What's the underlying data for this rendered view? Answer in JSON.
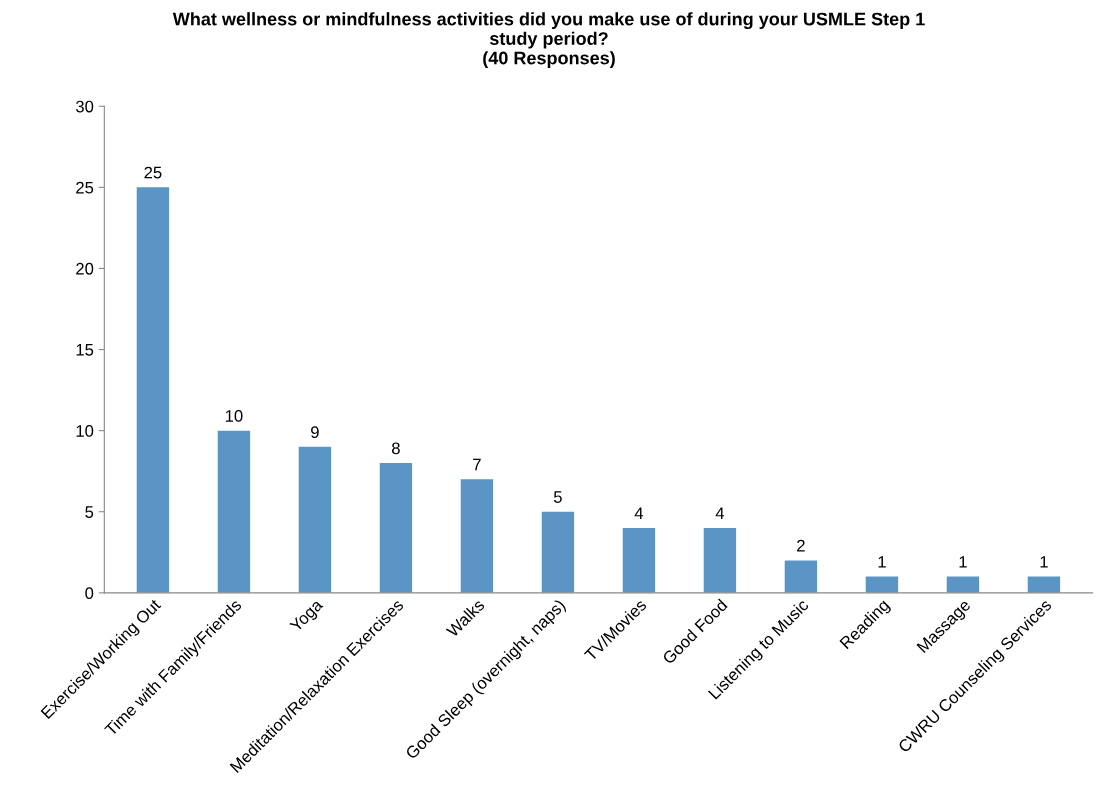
{
  "chart_data": {
    "type": "bar",
    "title": "What wellness or mindfulness activities did you make use of during your USMLE Step 1\nstudy period?\n(40 Responses)",
    "categories": [
      "Exercise/Working Out",
      "Time with Family/Friends",
      "Yoga",
      "Meditation/Relaxation Exercises",
      "Walks",
      "Good Sleep (overnight, naps)",
      "TV/Movies",
      "Good Food",
      "Listening to Music",
      "Reading",
      "Massage",
      "CWRU Counseling Services"
    ],
    "values": [
      25,
      10,
      9,
      8,
      7,
      5,
      4,
      4,
      2,
      1,
      1,
      1
    ],
    "color": "#5b95c6",
    "ylim": [
      0,
      30
    ],
    "yticks": [
      0,
      5,
      10,
      15,
      20,
      25,
      30
    ],
    "data_labels": true,
    "grid": false,
    "legend": false
  }
}
